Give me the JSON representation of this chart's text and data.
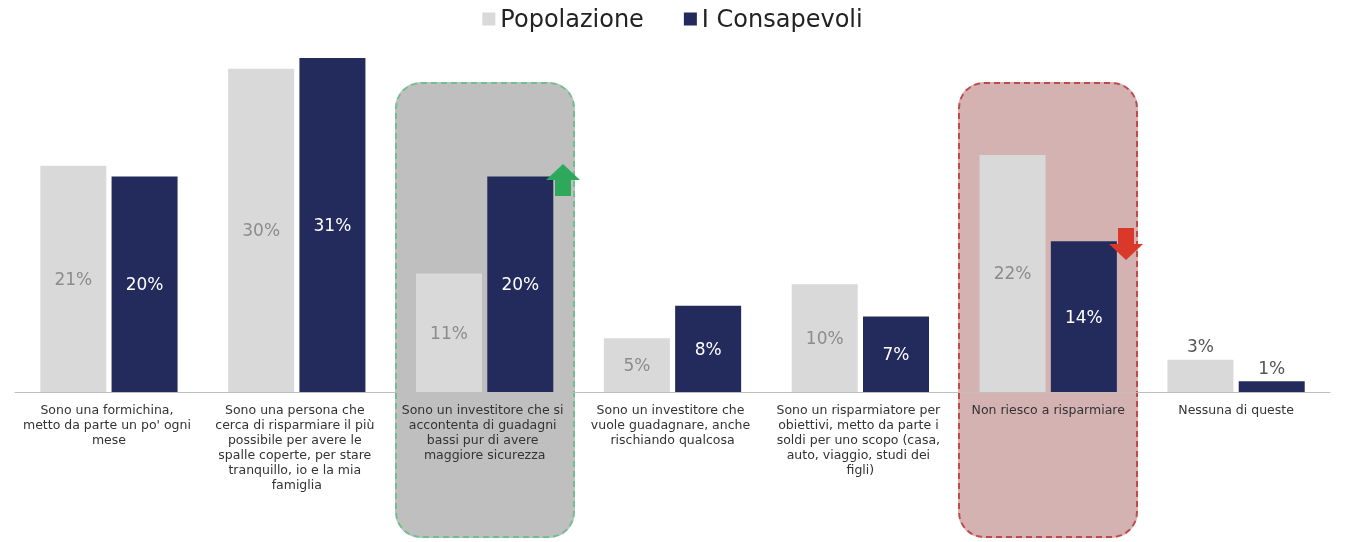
{
  "chart_data": {
    "type": "bar",
    "categories": [
      "Sono una formichina, metto da parte un po' ogni mese",
      "Sono una persona che cerca di risparmiare il più possibile per avere le spalle coperte, per stare tranquillo, io e la mia famiglia",
      "Sono un investitore che si accontenta di guadagni bassi pur di avere maggiore sicurezza",
      "Sono un investitore che vuole guadagnare, anche rischiando qualcosa",
      "Sono un risparmiatore per obiettivi, metto da parte i soldi per uno scopo (casa, auto, viaggio, studi dei figli)",
      "Non riesco a risparmiare",
      "Nessuna di queste"
    ],
    "series": [
      {
        "name": "Popolazione",
        "color": "#d9d9d9",
        "values": [
          21,
          30,
          11,
          5,
          10,
          22,
          3
        ],
        "value_labels": [
          "21%",
          "30%",
          "11%",
          "5%",
          "10%",
          "22%",
          "3%"
        ]
      },
      {
        "name": "I Consapevoli",
        "color": "#232a5c",
        "values": [
          20,
          31,
          20,
          8,
          7,
          14,
          1
        ],
        "value_labels": [
          "20%",
          "31%",
          "20%",
          "8%",
          "7%",
          "14%",
          "1%"
        ]
      }
    ],
    "legend": "top",
    "bands": [
      {
        "axis": "x",
        "from": "Sono un investitore che si accontenta di guadagni bassi pur di avere maggiore sicurezza",
        "to": "Sono un investitore che si accontenta di guadagni bassi pur di avere maggiore sicurezza",
        "color": "#bfbfbf"
      },
      {
        "axis": "x",
        "from": "Non riesco a risparmiare",
        "to": "Non riesco a risparmiare",
        "color": "#d4b2b2"
      }
    ]
  }
}
